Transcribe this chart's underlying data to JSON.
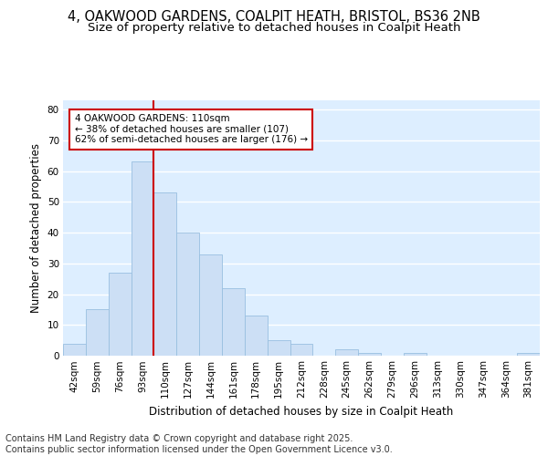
{
  "title_line1": "4, OAKWOOD GARDENS, COALPIT HEATH, BRISTOL, BS36 2NB",
  "title_line2": "Size of property relative to detached houses in Coalpit Heath",
  "xlabel": "Distribution of detached houses by size in Coalpit Heath",
  "ylabel": "Number of detached properties",
  "categories": [
    "42sqm",
    "59sqm",
    "76sqm",
    "93sqm",
    "110sqm",
    "127sqm",
    "144sqm",
    "161sqm",
    "178sqm",
    "195sqm",
    "212sqm",
    "228sqm",
    "245sqm",
    "262sqm",
    "279sqm",
    "296sqm",
    "313sqm",
    "330sqm",
    "347sqm",
    "364sqm",
    "381sqm"
  ],
  "values": [
    4,
    15,
    27,
    63,
    53,
    40,
    33,
    22,
    13,
    5,
    4,
    0,
    2,
    1,
    0,
    1,
    0,
    0,
    0,
    0,
    1
  ],
  "bar_color": "#ccdff5",
  "bar_edge_color": "#99bfe0",
  "red_line_index": 4,
  "annotation_text": "4 OAKWOOD GARDENS: 110sqm\n← 38% of detached houses are smaller (107)\n62% of semi-detached houses are larger (176) →",
  "annotation_box_color": "#ffffff",
  "annotation_box_edge": "#cc0000",
  "ylim": [
    0,
    83
  ],
  "yticks": [
    0,
    10,
    20,
    30,
    40,
    50,
    60,
    70,
    80
  ],
  "footnote": "Contains HM Land Registry data © Crown copyright and database right 2025.\nContains public sector information licensed under the Open Government Licence v3.0.",
  "bg_color": "#ffffff",
  "plot_bg_color": "#ddeeff",
  "grid_color": "#ffffff",
  "title_fontsize": 10.5,
  "subtitle_fontsize": 9.5,
  "axis_label_fontsize": 8.5,
  "tick_fontsize": 7.5,
  "annotation_fontsize": 7.5,
  "footnote_fontsize": 7
}
